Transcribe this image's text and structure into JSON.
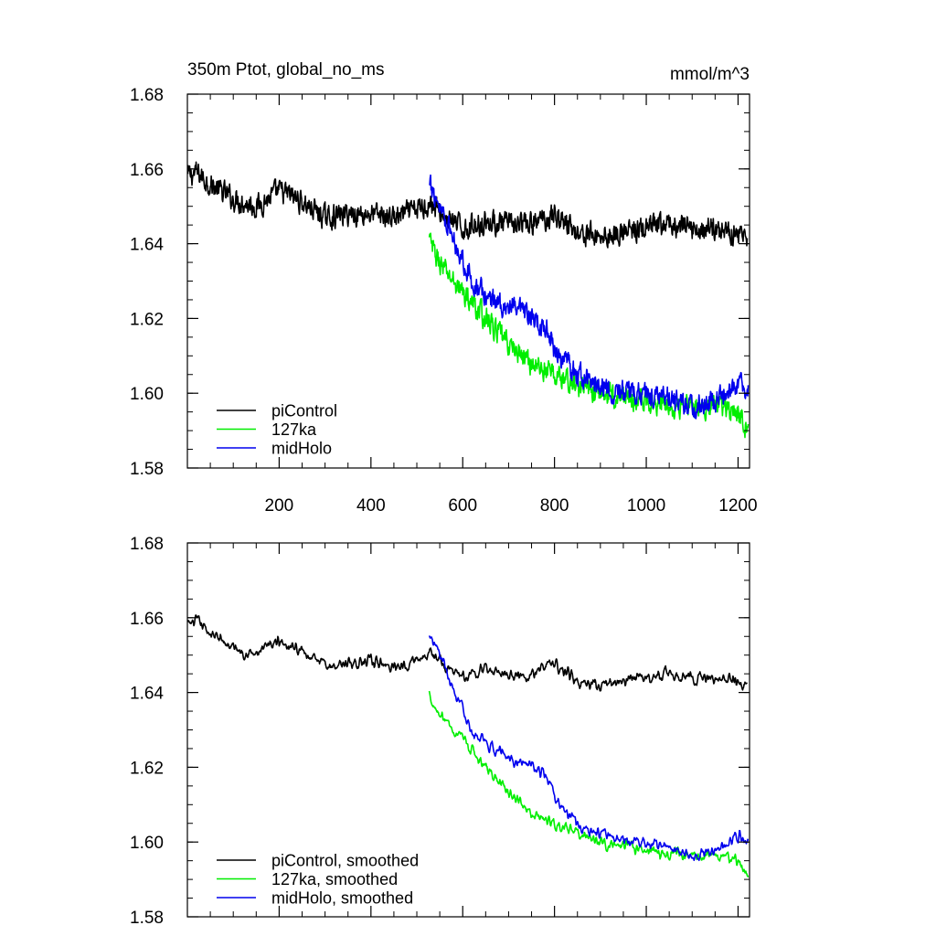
{
  "chart_data": [
    {
      "type": "line",
      "title": "350m Ptot, global_no_ms",
      "units": "mmol/m^3",
      "xlim": [
        0,
        1225
      ],
      "ylim": [
        1.58,
        1.68
      ],
      "x_ticks": [
        200,
        400,
        600,
        800,
        1000,
        1200
      ],
      "y_ticks": [
        1.58,
        1.6,
        1.62,
        1.64,
        1.66,
        1.68
      ],
      "y_tick_labels": [
        "1.58",
        "1.60",
        "1.62",
        "1.64",
        "1.66",
        "1.68"
      ],
      "x_tick_labels": [
        "200",
        "400",
        "600",
        "800",
        "1000",
        "1200"
      ],
      "show_x_tick_labels": true,
      "noise": 0.0026,
      "smooth": 1,
      "legend": {
        "position": "bottom-left",
        "entries": [
          "piControl",
          "127ka",
          "midHolo"
        ]
      },
      "series": [
        {
          "name": "piControl",
          "color": "#000000",
          "x_range": [
            1,
            1220
          ],
          "x": [
            1,
            20,
            60,
            100,
            150,
            200,
            240,
            300,
            350,
            400,
            450,
            500,
            530,
            560,
            600,
            650,
            700,
            750,
            800,
            850,
            900,
            950,
            1000,
            1050,
            1100,
            1150,
            1200,
            1220
          ],
          "y": [
            1.658,
            1.659,
            1.655,
            1.652,
            1.65,
            1.654,
            1.652,
            1.647,
            1.648,
            1.648,
            1.647,
            1.649,
            1.651,
            1.647,
            1.644,
            1.646,
            1.645,
            1.645,
            1.648,
            1.643,
            1.642,
            1.643,
            1.644,
            1.645,
            1.644,
            1.644,
            1.643,
            1.642
          ]
        },
        {
          "name": "127ka",
          "color": "#00ee00",
          "x_range": [
            527,
            1222
          ],
          "x": [
            527,
            540,
            560,
            600,
            650,
            700,
            750,
            800,
            850,
            900,
            950,
            1000,
            1050,
            1100,
            1150,
            1200,
            1222
          ],
          "y": [
            1.641,
            1.637,
            1.633,
            1.627,
            1.62,
            1.613,
            1.608,
            1.605,
            1.602,
            1.6,
            1.599,
            1.598,
            1.597,
            1.596,
            1.597,
            1.595,
            1.59
          ]
        },
        {
          "name": "midHolo",
          "color": "#0000ee",
          "x_range": [
            527,
            1222
          ],
          "x": [
            527,
            540,
            560,
            580,
            600,
            620,
            650,
            700,
            750,
            780,
            800,
            830,
            850,
            880,
            900,
            950,
            1000,
            1050,
            1100,
            1150,
            1200,
            1222
          ],
          "y": [
            1.655,
            1.653,
            1.648,
            1.641,
            1.636,
            1.63,
            1.626,
            1.623,
            1.62,
            1.618,
            1.612,
            1.607,
            1.605,
            1.603,
            1.602,
            1.6,
            1.6,
            1.599,
            1.596,
            1.598,
            1.602,
            1.601
          ]
        }
      ]
    },
    {
      "type": "line",
      "title": "",
      "units": "",
      "xlim": [
        0,
        1225
      ],
      "ylim": [
        1.58,
        1.68
      ],
      "x_ticks": [
        200,
        400,
        600,
        800,
        1000,
        1200
      ],
      "y_ticks": [
        1.58,
        1.6,
        1.62,
        1.64,
        1.66,
        1.68
      ],
      "y_tick_labels": [
        "1.58",
        "1.60",
        "1.62",
        "1.64",
        "1.66",
        "1.68"
      ],
      "x_tick_labels": [],
      "show_x_tick_labels": false,
      "noise": 0.0016,
      "smooth": 3,
      "legend": {
        "position": "bottom-left",
        "entries": [
          "piControl, smoothed",
          "127ka, smoothed",
          "midHolo, smoothed"
        ]
      },
      "series": [
        {
          "name": "piControl, smoothed",
          "color": "#000000",
          "x_range": [
            1,
            1220
          ],
          "x": [
            1,
            20,
            60,
            100,
            150,
            200,
            240,
            300,
            350,
            400,
            450,
            500,
            530,
            560,
            600,
            650,
            700,
            750,
            800,
            850,
            900,
            950,
            1000,
            1050,
            1100,
            1150,
            1200,
            1220
          ],
          "y": [
            1.658,
            1.659,
            1.655,
            1.652,
            1.65,
            1.654,
            1.652,
            1.647,
            1.648,
            1.648,
            1.647,
            1.649,
            1.651,
            1.647,
            1.644,
            1.646,
            1.645,
            1.645,
            1.648,
            1.643,
            1.642,
            1.643,
            1.644,
            1.645,
            1.644,
            1.644,
            1.643,
            1.642
          ]
        },
        {
          "name": "127ka, smoothed",
          "color": "#00ee00",
          "x_range": [
            527,
            1222
          ],
          "x": [
            527,
            540,
            560,
            600,
            650,
            700,
            750,
            800,
            850,
            900,
            950,
            1000,
            1050,
            1100,
            1150,
            1200,
            1222
          ],
          "y": [
            1.64,
            1.636,
            1.633,
            1.627,
            1.62,
            1.613,
            1.608,
            1.605,
            1.602,
            1.6,
            1.599,
            1.598,
            1.597,
            1.596,
            1.597,
            1.595,
            1.59
          ]
        },
        {
          "name": "midHolo, smoothed",
          "color": "#0000ee",
          "x_range": [
            527,
            1222
          ],
          "x": [
            527,
            540,
            560,
            580,
            600,
            620,
            650,
            700,
            750,
            780,
            800,
            830,
            850,
            880,
            900,
            950,
            1000,
            1050,
            1100,
            1150,
            1200,
            1222
          ],
          "y": [
            1.655,
            1.653,
            1.648,
            1.641,
            1.636,
            1.63,
            1.626,
            1.623,
            1.62,
            1.618,
            1.612,
            1.607,
            1.605,
            1.603,
            1.602,
            1.6,
            1.6,
            1.599,
            1.596,
            1.598,
            1.602,
            1.601
          ]
        }
      ]
    }
  ]
}
